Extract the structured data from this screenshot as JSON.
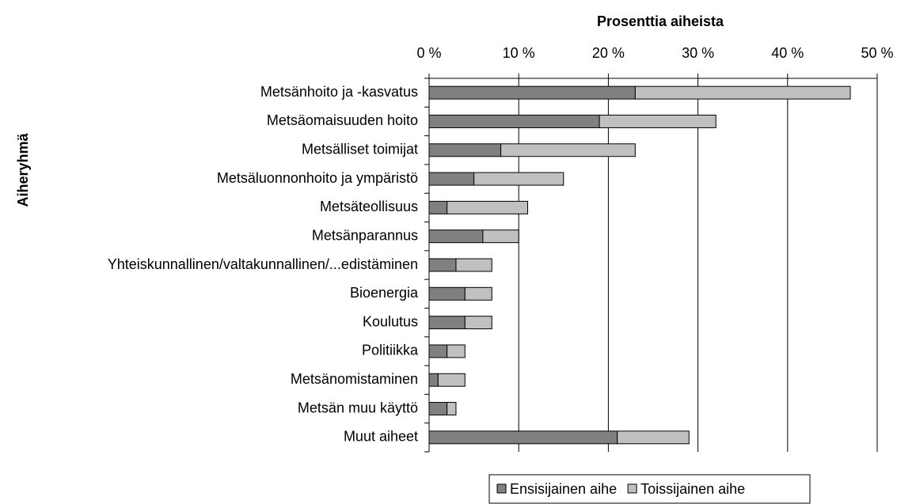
{
  "chart_data": {
    "type": "stacked_barh",
    "x_label": "Prosenttia aiheista",
    "y_label": "Aiheryhmä",
    "categories": [
      "Metsänhoito ja -kasvatus",
      "Metsäomaisuuden hoito",
      "Metsälliset toimijat",
      "Metsäluonnonhoito ja ympäristö",
      "Metsäteollisuus",
      "Metsänparannus",
      "Yhteiskunnallinen/valtakunnallinen/...edistäminen",
      "Bioenergia",
      "Koulutus",
      "Politiikka",
      "Metsänomistaminen",
      "Metsän muu käyttö",
      "Muut aiheet"
    ],
    "series": [
      {
        "name": "Ensisijainen aihe",
        "color": "#808080",
        "values": [
          23,
          19,
          8,
          5,
          2,
          6,
          3,
          4,
          4,
          2,
          1,
          2,
          21
        ]
      },
      {
        "name": "Toissijainen aihe",
        "color": "#c0c0c0",
        "values": [
          24,
          13,
          15,
          10,
          9,
          4,
          4,
          3,
          3,
          2,
          3,
          1,
          8
        ]
      }
    ],
    "xlim": [
      0,
      50
    ],
    "xticks": [
      {
        "value": 0,
        "label": "0 %"
      },
      {
        "value": 10,
        "label": "10 %"
      },
      {
        "value": 20,
        "label": "20 %"
      },
      {
        "value": 30,
        "label": "30 %"
      },
      {
        "value": 40,
        "label": "40 %"
      },
      {
        "value": 50,
        "label": "50 %"
      }
    ],
    "grid": true,
    "legend": "bottom"
  }
}
